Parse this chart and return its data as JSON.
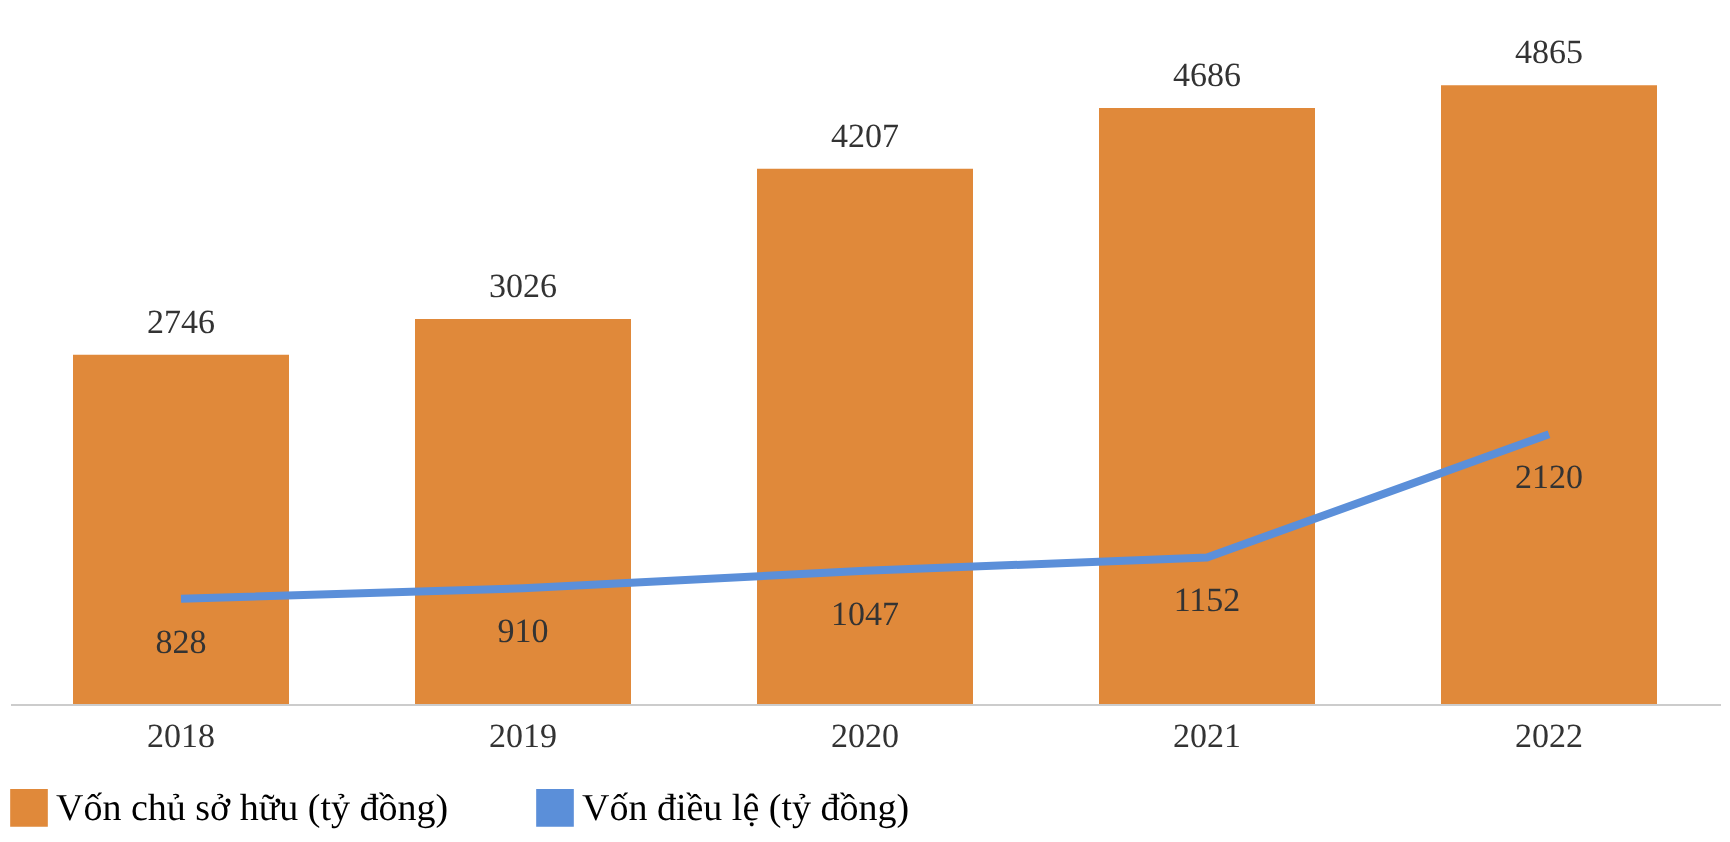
{
  "chart_data": {
    "type": "bar",
    "categories": [
      "2018",
      "2019",
      "2020",
      "2021",
      "2022"
    ],
    "series": [
      {
        "name": "Vốn chủ sở hữu (tỷ đồng)",
        "color": "#e0893a",
        "values": [
          2746,
          3026,
          4207,
          4686,
          4865
        ]
      },
      {
        "name": "Vốn điều lệ (tỷ đồng)",
        "type": "line",
        "color": "#5b8fd9",
        "values": [
          828,
          910,
          1047,
          1152,
          2120
        ]
      }
    ],
    "data_labels": true,
    "legend": "bottom"
  }
}
